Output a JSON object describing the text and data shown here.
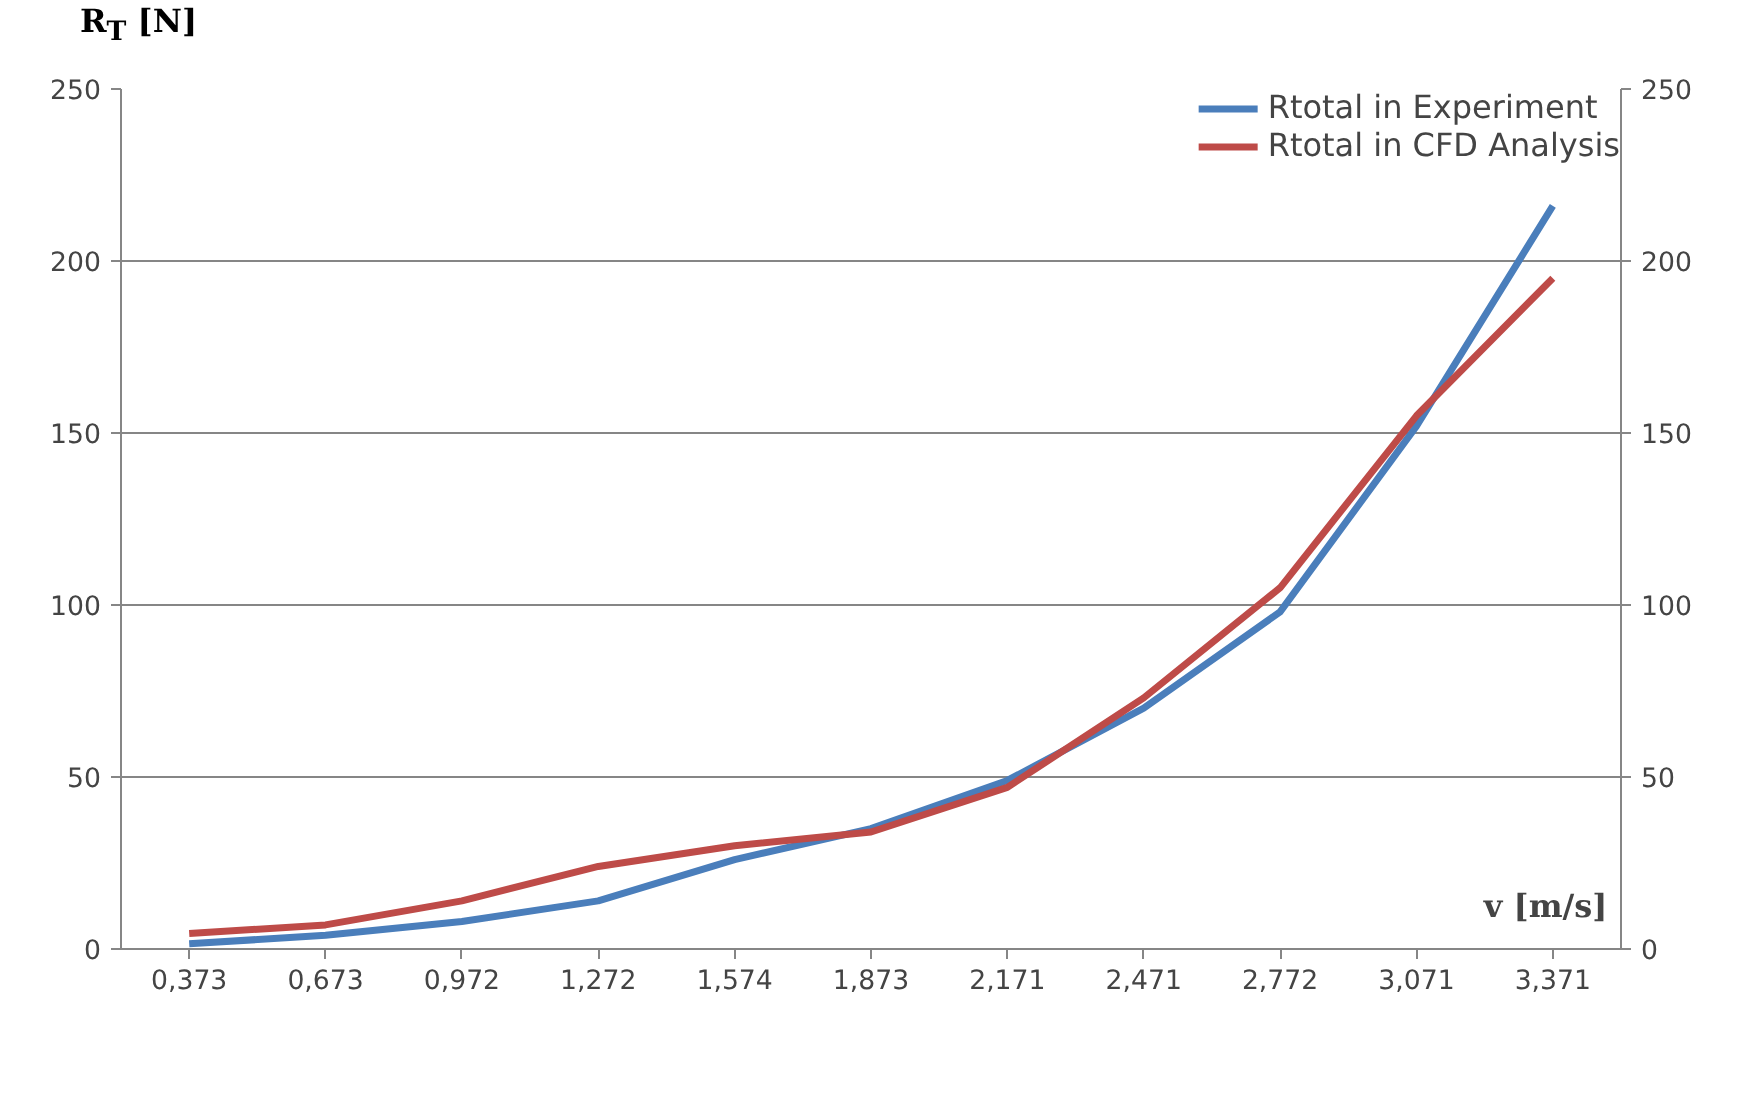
{
  "chart_data": {
    "type": "line",
    "ylabel": "R$_{T}$ [N]",
    "xlabel": "v [m/s]",
    "categories": [
      "0,373",
      "0,673",
      "0,972",
      "1,272",
      "1,574",
      "1,873",
      "2,171",
      "2,471",
      "2,772",
      "3,071",
      "3,371"
    ],
    "series": [
      {
        "name": "Rtotal in Experiment",
        "color": "#4a7ebb",
        "values": [
          1.5,
          4,
          8,
          14,
          26,
          35,
          49,
          70,
          98,
          152,
          216
        ]
      },
      {
        "name": "Rtotal in CFD Analysis",
        "color": "#be4b48",
        "values": [
          4.5,
          7,
          14,
          24,
          30,
          34,
          47,
          73,
          105,
          155,
          195
        ]
      }
    ],
    "ylim": [
      0,
      250
    ],
    "yticks": [
      0,
      50,
      100,
      150,
      200,
      250
    ],
    "y2lim": [
      0,
      250
    ],
    "y2ticks": [
      0,
      50,
      100,
      150,
      200,
      250
    ],
    "grid": "y",
    "legend": "top right",
    "marker": "none",
    "line_style": "solid"
  }
}
